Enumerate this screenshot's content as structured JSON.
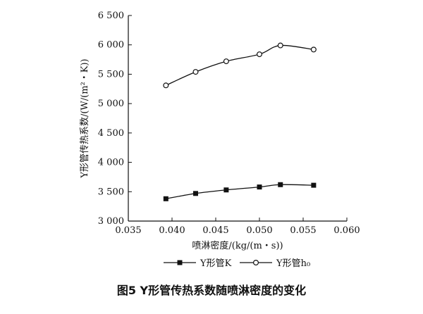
{
  "chart_data": {
    "type": "line",
    "title": "",
    "caption": "图5  Y形管传热系数随喷淋密度的变化",
    "xlabel": "喷淋密度/(kg/(m・s))",
    "ylabel": "Y形管传热系数/(W/(m²・K))",
    "xlim": [
      0.035,
      0.06
    ],
    "ylim": [
      3000,
      6500
    ],
    "x_ticks": [
      "0.035",
      "0.040",
      "0.045",
      "0.050",
      "0.055",
      "0.060"
    ],
    "y_ticks": [
      "3 000",
      "3 500",
      "4 000",
      "4 500",
      "5 000",
      "5 500",
      "6 000",
      "6 500"
    ],
    "grid": false,
    "legend_position": "bottom",
    "series": [
      {
        "name": "Y形管K",
        "marker": "filled-square",
        "color": "#111111",
        "x": [
          0.0393,
          0.0427,
          0.0462,
          0.05,
          0.0524,
          0.0562
        ],
        "y": [
          3380,
          3470,
          3530,
          3580,
          3620,
          3610
        ]
      },
      {
        "name": "Y形管h₀",
        "marker": "open-circle",
        "color": "#111111",
        "x": [
          0.0393,
          0.0427,
          0.0462,
          0.05,
          0.0524,
          0.0562
        ],
        "y": [
          5310,
          5540,
          5720,
          5840,
          5990,
          5920
        ]
      }
    ]
  }
}
